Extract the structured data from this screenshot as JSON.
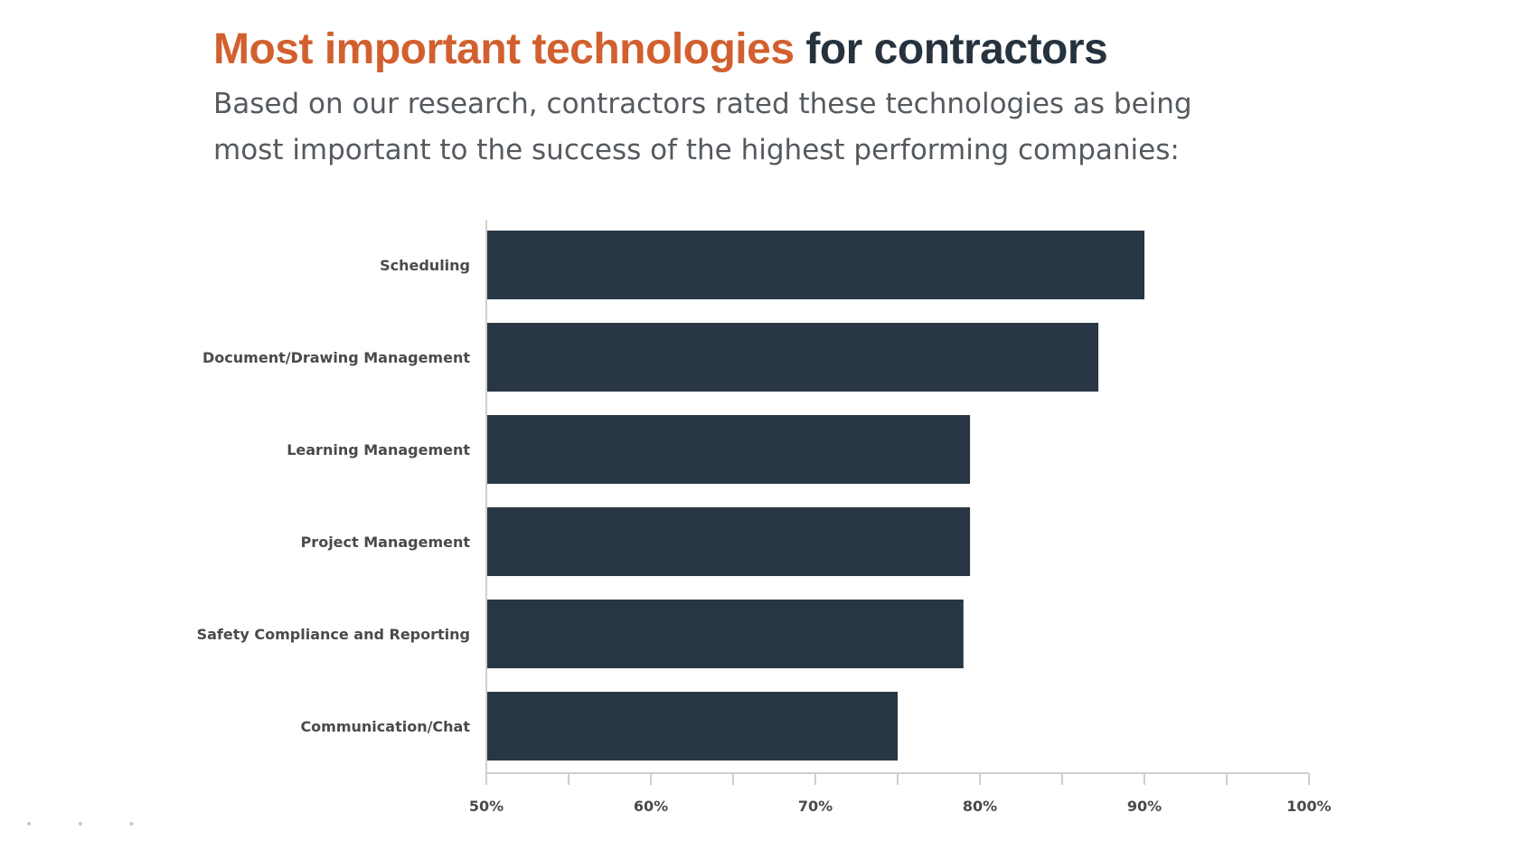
{
  "header": {
    "title_accent": "Most important technologies",
    "title_rest": "for contractors",
    "subtitle_line1": "Based on our research, contractors rated these technologies as being",
    "subtitle_line2": "most important to the success of the highest performing companies:"
  },
  "colors": {
    "accent": "#d2602f",
    "bar": "#293744",
    "title_dark": "#26333f",
    "axis": "#cfcfcf",
    "label_text": "#4a4a4a"
  },
  "chart_data": {
    "type": "bar",
    "orientation": "horizontal",
    "categories": [
      "Scheduling",
      "Document/Drawing Management",
      "Learning Management",
      "Project Management",
      "Safety Compliance and Reporting",
      "Communication/Chat"
    ],
    "values": [
      90,
      87.2,
      79.4,
      79.4,
      79,
      75
    ],
    "xlim": [
      50,
      100
    ],
    "xticks": [
      50,
      55,
      60,
      65,
      70,
      75,
      80,
      85,
      90,
      95,
      100
    ],
    "xtick_labels": [
      "50%",
      "60%",
      "70%",
      "80%",
      "90%",
      "100%"
    ],
    "xtick_label_values": [
      50,
      60,
      70,
      80,
      90,
      100
    ],
    "xlabel": "",
    "ylabel": "",
    "grid": false,
    "legend": "none"
  }
}
